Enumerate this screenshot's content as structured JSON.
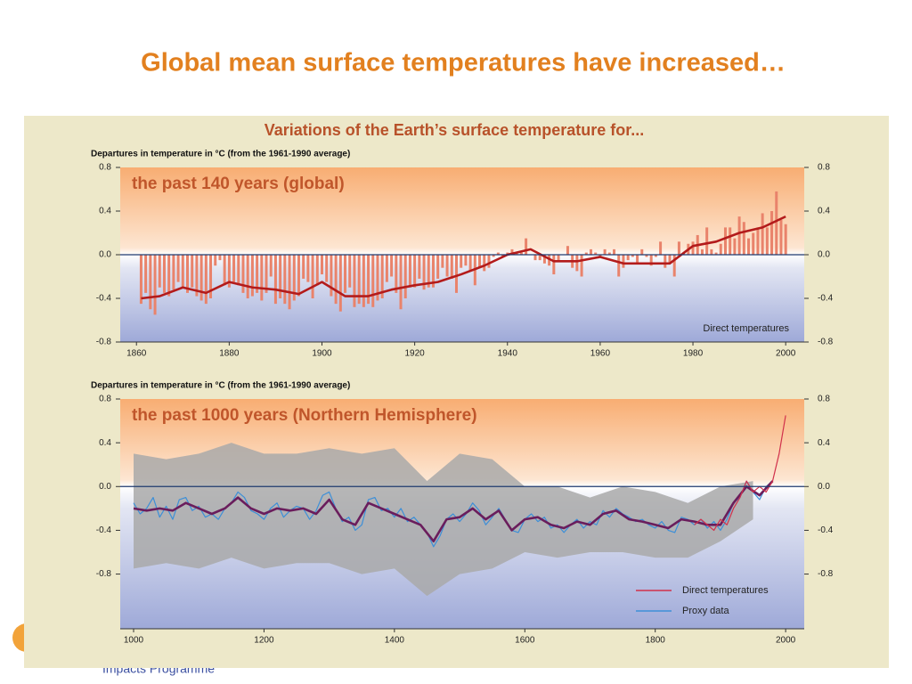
{
  "title": "Global mean surface temperatures have increased…",
  "panel_title": "Variations of the Earth’s surface temperature for...",
  "footer": "Impacts Programme",
  "chart_data": [
    {
      "type": "bar",
      "title": "the past 140 years (global)",
      "ylabel": "Departures in temperature in °C (from the 1961-1990 average)",
      "annotation": "Direct temperatures",
      "xlim": [
        1856.5,
        2004
      ],
      "ylim": [
        -0.8,
        0.8
      ],
      "xticks": [
        1860,
        1880,
        1900,
        1920,
        1940,
        1960,
        1980,
        2000
      ],
      "yticks": [
        0.8,
        0.4,
        {
          "value": 0,
          "label": "0.0"
        },
        -0.4,
        -0.8
      ],
      "series": [
        {
          "type": "bar",
          "color": "#e9836b",
          "x": [
            1861,
            1862,
            1863,
            1864,
            1865,
            1866,
            1867,
            1868,
            1869,
            1870,
            1871,
            1872,
            1873,
            1874,
            1875,
            1876,
            1877,
            1878,
            1879,
            1880,
            1881,
            1882,
            1883,
            1884,
            1885,
            1886,
            1887,
            1888,
            1889,
            1890,
            1891,
            1892,
            1893,
            1894,
            1895,
            1896,
            1897,
            1898,
            1899,
            1900,
            1901,
            1902,
            1903,
            1904,
            1905,
            1906,
            1907,
            1908,
            1909,
            1910,
            1911,
            1912,
            1913,
            1914,
            1915,
            1916,
            1917,
            1918,
            1919,
            1920,
            1921,
            1922,
            1923,
            1924,
            1925,
            1926,
            1927,
            1928,
            1929,
            1930,
            1931,
            1932,
            1933,
            1934,
            1935,
            1936,
            1937,
            1938,
            1939,
            1940,
            1941,
            1942,
            1943,
            1944,
            1945,
            1946,
            1947,
            1948,
            1949,
            1950,
            1951,
            1952,
            1953,
            1954,
            1955,
            1956,
            1957,
            1958,
            1959,
            1960,
            1961,
            1962,
            1963,
            1964,
            1965,
            1966,
            1967,
            1968,
            1969,
            1970,
            1971,
            1972,
            1973,
            1974,
            1975,
            1976,
            1977,
            1978,
            1979,
            1980,
            1981,
            1982,
            1983,
            1984,
            1985,
            1986,
            1987,
            1988,
            1989,
            1990,
            1991,
            1992,
            1993,
            1994,
            1995,
            1996,
            1997,
            1998,
            1999,
            2000
          ],
          "values": [
            -0.45,
            -0.35,
            -0.5,
            -0.55,
            -0.3,
            -0.35,
            -0.38,
            -0.32,
            -0.25,
            -0.3,
            -0.35,
            -0.3,
            -0.38,
            -0.42,
            -0.45,
            -0.4,
            -0.1,
            -0.05,
            -0.28,
            -0.3,
            -0.25,
            -0.28,
            -0.35,
            -0.4,
            -0.38,
            -0.35,
            -0.42,
            -0.35,
            -0.2,
            -0.45,
            -0.4,
            -0.45,
            -0.5,
            -0.42,
            -0.38,
            -0.22,
            -0.25,
            -0.4,
            -0.28,
            -0.18,
            -0.25,
            -0.38,
            -0.45,
            -0.52,
            -0.35,
            -0.3,
            -0.48,
            -0.45,
            -0.48,
            -0.45,
            -0.48,
            -0.42,
            -0.4,
            -0.25,
            -0.2,
            -0.35,
            -0.5,
            -0.4,
            -0.3,
            -0.3,
            -0.22,
            -0.32,
            -0.3,
            -0.3,
            -0.22,
            -0.12,
            -0.2,
            -0.22,
            -0.35,
            -0.12,
            -0.1,
            -0.15,
            -0.28,
            -0.12,
            -0.15,
            -0.12,
            -0.02,
            0.02,
            -0.02,
            0.02,
            0.05,
            0.02,
            0.02,
            0.15,
            0.0,
            -0.05,
            -0.05,
            -0.08,
            -0.1,
            -0.18,
            -0.05,
            0.0,
            0.08,
            -0.12,
            -0.15,
            -0.2,
            0.02,
            0.05,
            0.02,
            -0.02,
            0.05,
            0.02,
            0.05,
            -0.2,
            -0.12,
            -0.05,
            -0.02,
            -0.08,
            0.05,
            -0.02,
            -0.1,
            -0.02,
            0.12,
            -0.12,
            -0.08,
            -0.2,
            0.12,
            0.02,
            0.1,
            0.12,
            0.18,
            0.05,
            0.25,
            0.05,
            0.02,
            0.1,
            0.25,
            0.25,
            0.15,
            0.35,
            0.3,
            0.15,
            0.2,
            0.25,
            0.38,
            0.25,
            0.4,
            0.58,
            0.32,
            0.28
          ]
        },
        {
          "type": "line",
          "color": "#b31b1b",
          "x": [
            1861,
            1865,
            1870,
            1875,
            1880,
            1885,
            1890,
            1895,
            1900,
            1905,
            1910,
            1915,
            1920,
            1925,
            1930,
            1935,
            1940,
            1945,
            1950,
            1955,
            1960,
            1965,
            1970,
            1975,
            1980,
            1985,
            1990,
            1995,
            2000
          ],
          "values": [
            -0.4,
            -0.38,
            -0.3,
            -0.35,
            -0.25,
            -0.3,
            -0.32,
            -0.36,
            -0.25,
            -0.38,
            -0.38,
            -0.32,
            -0.28,
            -0.25,
            -0.18,
            -0.1,
            0.0,
            0.05,
            -0.06,
            -0.06,
            -0.02,
            -0.08,
            -0.08,
            -0.08,
            0.08,
            0.12,
            0.2,
            0.25,
            0.35
          ]
        }
      ]
    },
    {
      "type": "line",
      "title": "the past 1000 years (Northern Hemisphere)",
      "ylabel": "Departures in temperature in °C (from the 1961-1990 average)",
      "xlim": [
        979.5,
        2028.5
      ],
      "ylim": [
        -1.3,
        0.8
      ],
      "xticks": [
        1000,
        1200,
        1400,
        1600,
        1800,
        2000
      ],
      "yticks": [
        0.8,
        0.4,
        {
          "value": 0,
          "label": "0.0"
        },
        -0.4,
        -0.8
      ],
      "band": {
        "color": "#a9a9a9",
        "x": [
          1000,
          1050,
          1100,
          1150,
          1200,
          1250,
          1300,
          1350,
          1400,
          1450,
          1500,
          1550,
          1600,
          1650,
          1700,
          1750,
          1800,
          1850,
          1900,
          1950
        ],
        "upper": [
          0.3,
          0.25,
          0.3,
          0.4,
          0.3,
          0.3,
          0.35,
          0.3,
          0.35,
          0.05,
          0.3,
          0.25,
          0.0,
          0.0,
          -0.1,
          0.0,
          -0.05,
          -0.15,
          0.0,
          0.05
        ],
        "lower": [
          -0.75,
          -0.7,
          -0.75,
          -0.65,
          -0.75,
          -0.7,
          -0.7,
          -0.8,
          -0.75,
          -1.0,
          -0.8,
          -0.75,
          -0.6,
          -0.65,
          -0.6,
          -0.6,
          -0.65,
          -0.65,
          -0.5,
          -0.3
        ]
      },
      "series": [
        {
          "name": "Proxy data",
          "type": "line",
          "color": "#3d8fd8",
          "x": [
            1000,
            1010,
            1020,
            1030,
            1040,
            1050,
            1060,
            1070,
            1080,
            1090,
            1100,
            1110,
            1120,
            1130,
            1140,
            1150,
            1160,
            1170,
            1180,
            1190,
            1200,
            1210,
            1220,
            1230,
            1240,
            1250,
            1260,
            1270,
            1280,
            1290,
            1300,
            1310,
            1320,
            1330,
            1340,
            1350,
            1360,
            1370,
            1380,
            1390,
            1400,
            1410,
            1420,
            1430,
            1440,
            1450,
            1460,
            1470,
            1480,
            1490,
            1500,
            1510,
            1520,
            1530,
            1540,
            1550,
            1560,
            1570,
            1580,
            1590,
            1600,
            1610,
            1620,
            1630,
            1640,
            1650,
            1660,
            1670,
            1680,
            1690,
            1700,
            1710,
            1720,
            1730,
            1740,
            1750,
            1760,
            1770,
            1780,
            1790,
            1800,
            1810,
            1820,
            1830,
            1840,
            1850,
            1860,
            1870,
            1880,
            1890,
            1900,
            1910,
            1920,
            1930,
            1940,
            1950,
            1960,
            1970,
            1980
          ],
          "values": [
            -0.15,
            -0.25,
            -0.2,
            -0.1,
            -0.28,
            -0.18,
            -0.3,
            -0.12,
            -0.1,
            -0.22,
            -0.18,
            -0.28,
            -0.25,
            -0.3,
            -0.2,
            -0.15,
            -0.05,
            -0.1,
            -0.22,
            -0.25,
            -0.3,
            -0.2,
            -0.15,
            -0.28,
            -0.22,
            -0.18,
            -0.2,
            -0.3,
            -0.22,
            -0.08,
            -0.05,
            -0.2,
            -0.32,
            -0.28,
            -0.4,
            -0.35,
            -0.12,
            -0.1,
            -0.22,
            -0.2,
            -0.28,
            -0.2,
            -0.32,
            -0.28,
            -0.35,
            -0.42,
            -0.55,
            -0.45,
            -0.3,
            -0.25,
            -0.32,
            -0.25,
            -0.15,
            -0.22,
            -0.35,
            -0.28,
            -0.2,
            -0.3,
            -0.4,
            -0.42,
            -0.3,
            -0.25,
            -0.32,
            -0.28,
            -0.38,
            -0.35,
            -0.42,
            -0.35,
            -0.3,
            -0.38,
            -0.32,
            -0.35,
            -0.22,
            -0.28,
            -0.2,
            -0.25,
            -0.28,
            -0.32,
            -0.3,
            -0.35,
            -0.38,
            -0.32,
            -0.4,
            -0.42,
            -0.28,
            -0.3,
            -0.35,
            -0.3,
            -0.38,
            -0.32,
            -0.4,
            -0.3,
            -0.15,
            -0.1,
            0.05,
            -0.05,
            -0.12,
            0.0,
            0.05
          ]
        },
        {
          "type": "line",
          "color": "#6a1d5c",
          "x": [
            1000,
            1020,
            1040,
            1060,
            1080,
            1100,
            1120,
            1140,
            1160,
            1180,
            1200,
            1220,
            1240,
            1260,
            1280,
            1300,
            1320,
            1340,
            1360,
            1380,
            1400,
            1420,
            1440,
            1460,
            1480,
            1500,
            1520,
            1540,
            1560,
            1580,
            1600,
            1620,
            1640,
            1660,
            1680,
            1700,
            1720,
            1740,
            1760,
            1780,
            1800,
            1820,
            1840,
            1860,
            1880,
            1900,
            1920,
            1940,
            1960,
            1980
          ],
          "values": [
            -0.2,
            -0.22,
            -0.2,
            -0.22,
            -0.15,
            -0.2,
            -0.25,
            -0.2,
            -0.1,
            -0.2,
            -0.25,
            -0.2,
            -0.22,
            -0.2,
            -0.25,
            -0.12,
            -0.3,
            -0.35,
            -0.15,
            -0.2,
            -0.25,
            -0.3,
            -0.35,
            -0.5,
            -0.3,
            -0.28,
            -0.2,
            -0.3,
            -0.22,
            -0.4,
            -0.3,
            -0.28,
            -0.35,
            -0.38,
            -0.32,
            -0.35,
            -0.25,
            -0.22,
            -0.3,
            -0.32,
            -0.35,
            -0.38,
            -0.3,
            -0.32,
            -0.35,
            -0.35,
            -0.15,
            0.0,
            -0.08,
            0.05
          ]
        },
        {
          "name": "Direct temperatures",
          "type": "line",
          "color": "#d1304b",
          "x": [
            1860,
            1870,
            1880,
            1890,
            1900,
            1910,
            1920,
            1930,
            1940,
            1950,
            1960,
            1970,
            1980,
            1990,
            2000
          ],
          "values": [
            -0.35,
            -0.3,
            -0.35,
            -0.4,
            -0.3,
            -0.35,
            -0.2,
            -0.1,
            0.05,
            -0.05,
            0.0,
            -0.05,
            0.05,
            0.3,
            0.65
          ]
        }
      ]
    }
  ]
}
